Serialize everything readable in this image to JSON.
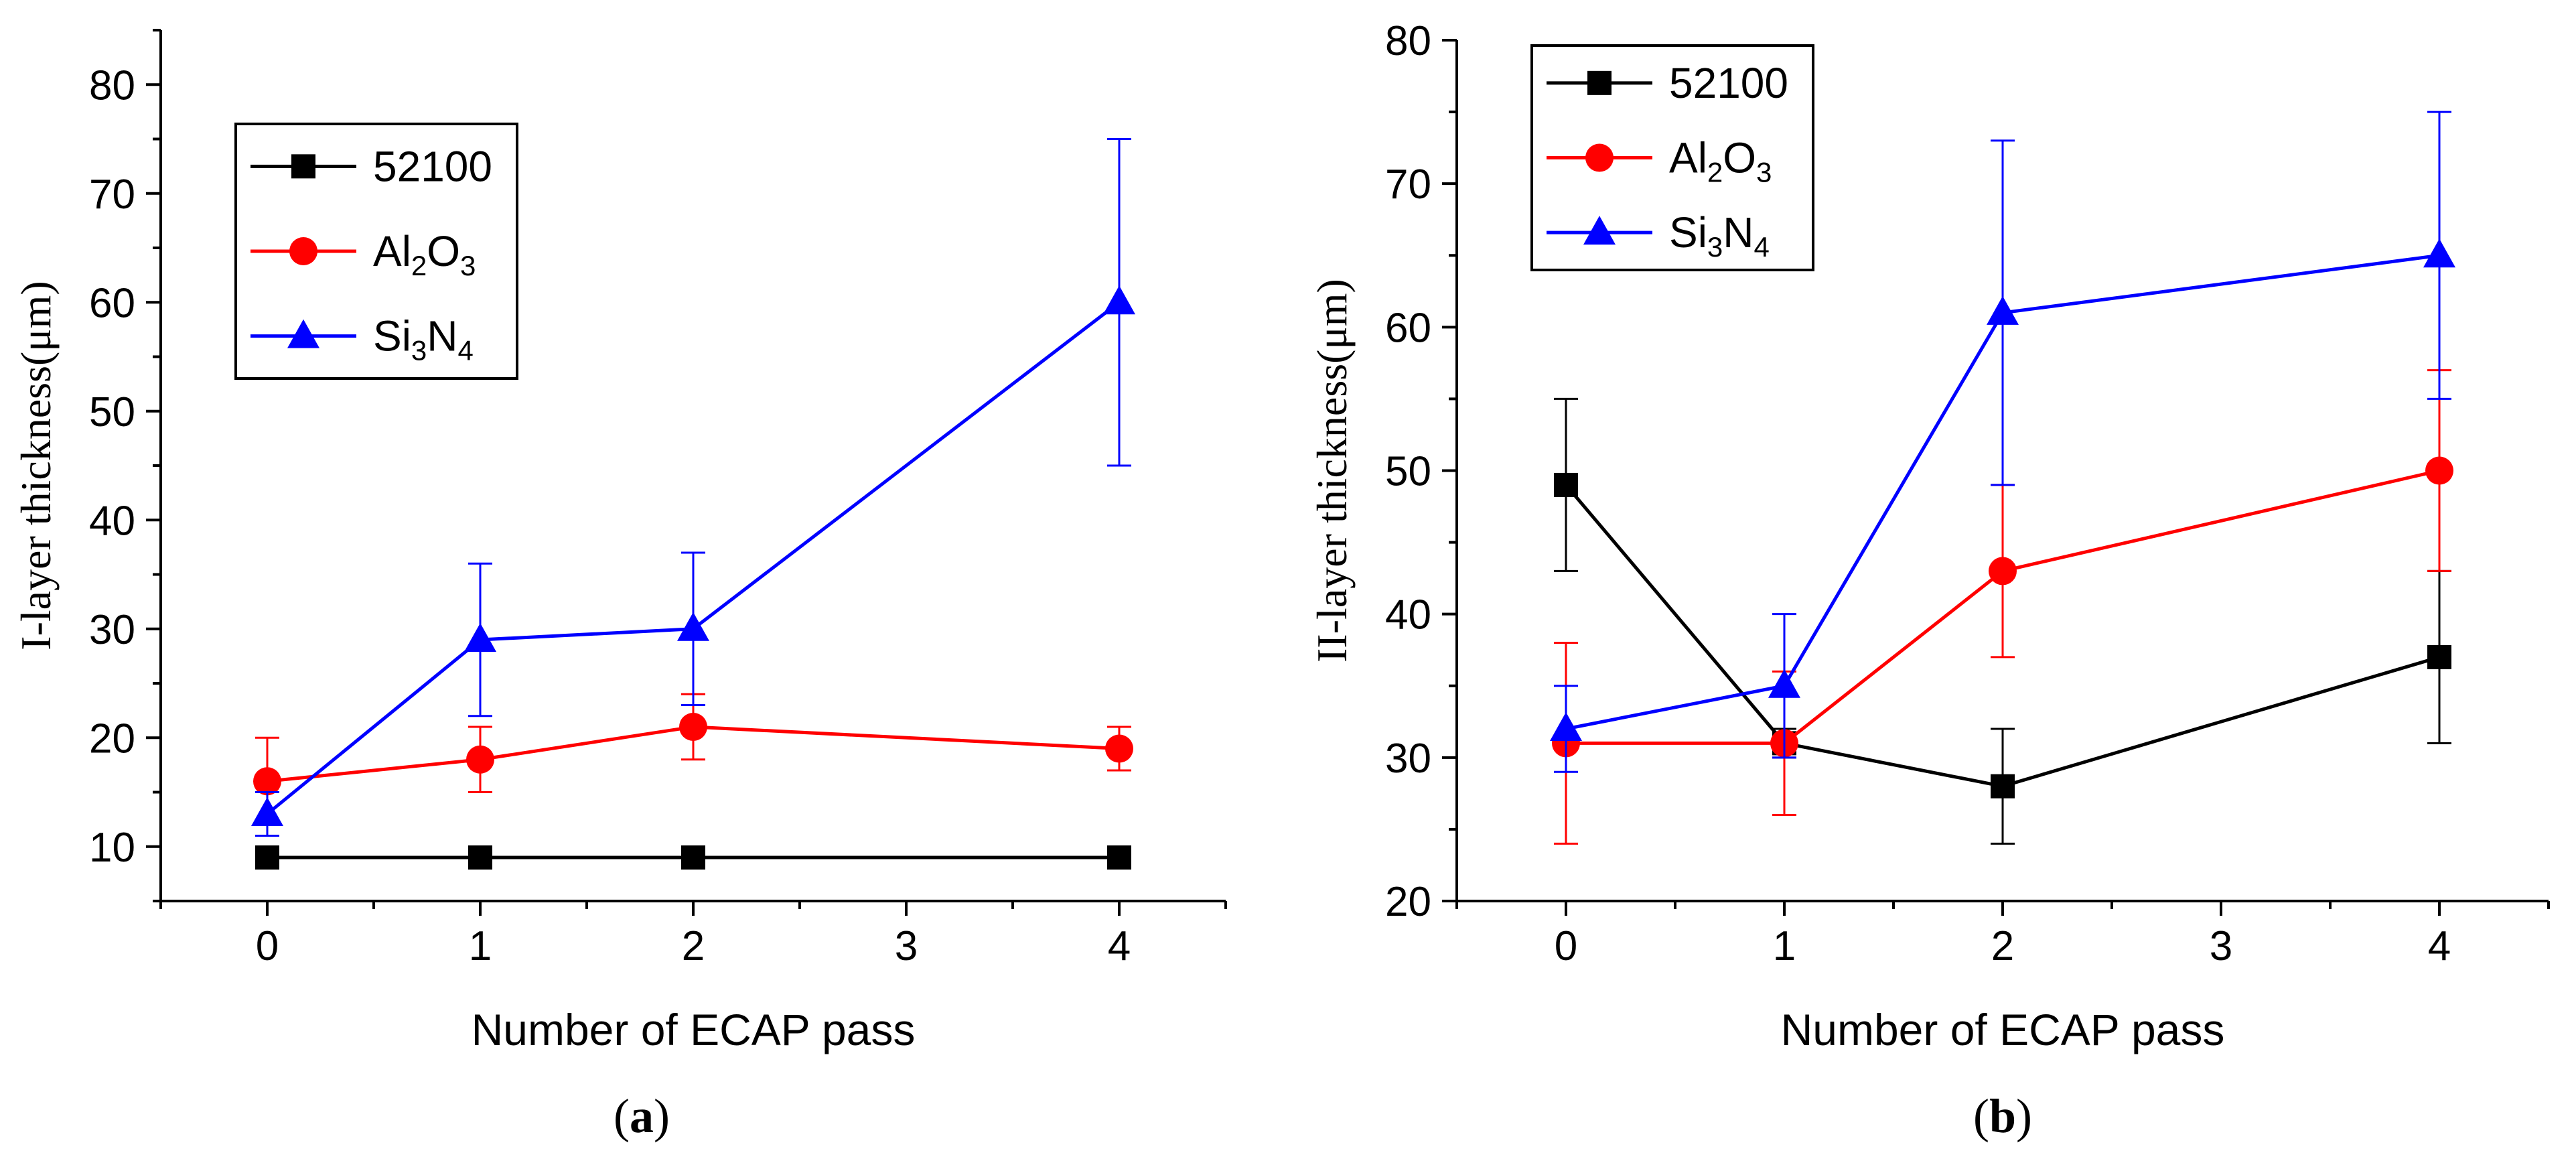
{
  "figure": {
    "panels": [
      {
        "id": "a",
        "label_open": "(",
        "label_letter": "a",
        "label_close": ")"
      },
      {
        "id": "b",
        "label_open": "(",
        "label_letter": "b",
        "label_close": ")"
      }
    ]
  },
  "colors": {
    "52100": "#000000",
    "Al2O3": "#ff0000",
    "Si3N4": "#0000ff"
  },
  "chart_data": [
    {
      "type": "line",
      "panel": "a",
      "title": "",
      "xlabel": "Number of ECAP pass",
      "ylabel": "I-layer thickness(μm)",
      "xlim": [
        -0.5,
        4.5
      ],
      "ylim": [
        5,
        85
      ],
      "xticks": [
        0,
        1,
        2,
        3,
        4
      ],
      "yticks": [
        10,
        20,
        30,
        40,
        50,
        60,
        70,
        80
      ],
      "legend_position": "upper-left",
      "x": [
        0,
        1,
        2,
        4
      ],
      "series": [
        {
          "name": "52100",
          "label_parts": [
            "52100"
          ],
          "marker": "square",
          "color": "#000000",
          "values": [
            9,
            9,
            9,
            9
          ],
          "err_low": [
            0,
            0,
            0,
            0
          ],
          "err_high": [
            0,
            0,
            0,
            0
          ]
        },
        {
          "name": "Al2O3",
          "label_parts": [
            "Al",
            "2",
            "O",
            "3"
          ],
          "marker": "circle",
          "color": "#ff0000",
          "values": [
            16,
            18,
            21,
            19
          ],
          "err_low": [
            16,
            15,
            18,
            17
          ],
          "err_high": [
            20,
            21,
            24,
            21
          ]
        },
        {
          "name": "Si3N4",
          "label_parts": [
            "Si",
            "3",
            "N",
            "4"
          ],
          "marker": "triangle",
          "color": "#0000ff",
          "values": [
            13,
            29,
            30,
            60
          ],
          "err_low": [
            11,
            22,
            23,
            45
          ],
          "err_high": [
            15,
            36,
            37,
            75
          ]
        }
      ]
    },
    {
      "type": "line",
      "panel": "b",
      "title": "",
      "xlabel": "Number of ECAP pass",
      "ylabel": "II-layer thickness(μm)",
      "xlim": [
        -0.5,
        4.5
      ],
      "ylim": [
        20,
        80
      ],
      "xticks": [
        0,
        1,
        2,
        3,
        4
      ],
      "yticks": [
        20,
        30,
        40,
        50,
        60,
        70,
        80
      ],
      "legend_position": "upper-left",
      "x": [
        0,
        1,
        2,
        4
      ],
      "series": [
        {
          "name": "52100",
          "label_parts": [
            "52100"
          ],
          "marker": "square",
          "color": "#000000",
          "values": [
            49,
            31,
            28,
            37
          ],
          "err_low": [
            43,
            30,
            24,
            31
          ],
          "err_high": [
            55,
            32,
            32,
            43
          ]
        },
        {
          "name": "Al2O3",
          "label_parts": [
            "Al",
            "2",
            "O",
            "3"
          ],
          "marker": "circle",
          "color": "#ff0000",
          "values": [
            31,
            31,
            43,
            50
          ],
          "err_low": [
            24,
            26,
            37,
            43
          ],
          "err_high": [
            38,
            36,
            49,
            57
          ]
        },
        {
          "name": "Si3N4",
          "label_parts": [
            "Si",
            "3",
            "N",
            "4"
          ],
          "marker": "triangle",
          "color": "#0000ff",
          "values": [
            32,
            35,
            61,
            65
          ],
          "err_low": [
            29,
            30,
            49,
            55
          ],
          "err_high": [
            35,
            40,
            73,
            75
          ]
        }
      ]
    }
  ]
}
